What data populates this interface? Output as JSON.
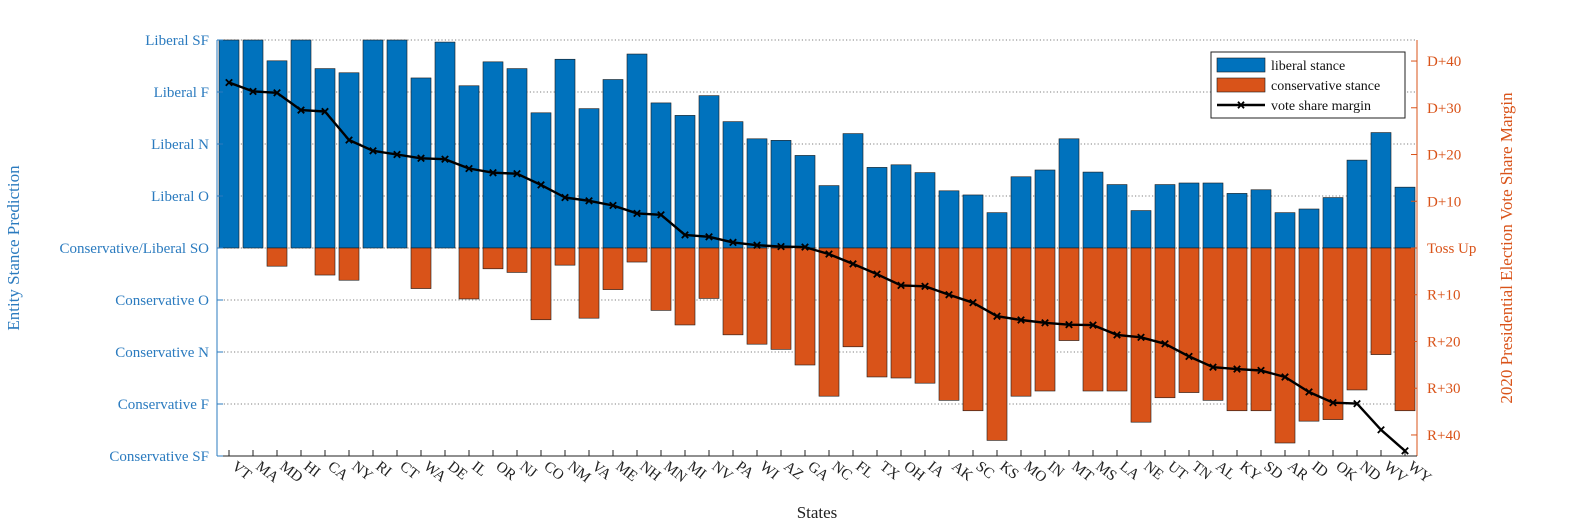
{
  "chart_data": {
    "type": "bar",
    "xlabel": "States",
    "ylabel_left": "Entity Stance Prediction",
    "ylabel_right": "2020 Presidential Election Vote Share Margin",
    "categories": [
      "VT",
      "MA",
      "MD",
      "HI",
      "CA",
      "NY",
      "RI",
      "CT",
      "WA",
      "DE",
      "IL",
      "OR",
      "NJ",
      "CO",
      "NM",
      "VA",
      "ME",
      "NH",
      "MN",
      "MI",
      "NV",
      "PA",
      "WI",
      "AZ",
      "GA",
      "NC",
      "FL",
      "TX",
      "OH",
      "IA",
      "AK",
      "SC",
      "KS",
      "MO",
      "IN",
      "MT",
      "MS",
      "LA",
      "NE",
      "UT",
      "TN",
      "AL",
      "KY",
      "SD",
      "AR",
      "ID",
      "OK",
      "ND",
      "WV",
      "WY"
    ],
    "left_axis": {
      "ticks": [
        {
          "value": 4,
          "label": "Liberal SF"
        },
        {
          "value": 3,
          "label": "Liberal F"
        },
        {
          "value": 2,
          "label": "Liberal N"
        },
        {
          "value": 1,
          "label": "Liberal O"
        },
        {
          "value": 0,
          "label": "Conservative/Liberal SO"
        },
        {
          "value": -1,
          "label": "Conservative O"
        },
        {
          "value": -2,
          "label": "Conservative N"
        },
        {
          "value": -3,
          "label": "Conservative F"
        },
        {
          "value": -4,
          "label": "Conservative SF"
        }
      ],
      "ylim": [
        -4,
        4
      ]
    },
    "right_axis": {
      "ticks": [
        {
          "value": 40,
          "label": "D+40"
        },
        {
          "value": 30,
          "label": "D+30"
        },
        {
          "value": 20,
          "label": "D+20"
        },
        {
          "value": 10,
          "label": "D+10"
        },
        {
          "value": 0,
          "label": "Toss Up"
        },
        {
          "value": -10,
          "label": "R+10"
        },
        {
          "value": -20,
          "label": "R+20"
        },
        {
          "value": -30,
          "label": "R+30"
        },
        {
          "value": -40,
          "label": "R+40"
        }
      ],
      "ylim": [
        -44.5,
        44.5
      ]
    },
    "series": [
      {
        "name": "liberal stance",
        "color": "#0072BD",
        "axis": "left",
        "values": [
          4.0,
          4.0,
          3.6,
          4.0,
          3.45,
          3.37,
          4.0,
          4.0,
          3.27,
          3.96,
          3.12,
          3.58,
          3.45,
          2.6,
          3.63,
          2.68,
          3.24,
          3.73,
          2.79,
          2.55,
          2.93,
          2.43,
          2.1,
          2.07,
          1.78,
          1.2,
          2.2,
          1.55,
          1.6,
          1.45,
          1.1,
          1.02,
          0.68,
          1.37,
          1.5,
          2.1,
          1.46,
          1.22,
          0.72,
          1.22,
          1.25,
          1.25,
          1.05,
          1.12,
          0.68,
          0.75,
          0.97,
          1.69,
          2.22,
          1.17
        ]
      },
      {
        "name": "conservative stance",
        "color": "#D95319",
        "axis": "left",
        "values": [
          0,
          0,
          -0.35,
          0,
          -0.52,
          -0.62,
          0,
          0,
          -0.78,
          0,
          -0.98,
          -0.4,
          -0.47,
          -1.38,
          -0.33,
          -1.35,
          -0.8,
          -0.27,
          -1.2,
          -1.48,
          -0.97,
          -1.67,
          -1.85,
          -1.95,
          -2.25,
          -2.85,
          -1.9,
          -2.48,
          -2.5,
          -2.6,
          -2.93,
          -3.13,
          -3.7,
          -2.85,
          -2.75,
          -1.78,
          -2.75,
          -2.75,
          -3.35,
          -2.88,
          -2.78,
          -2.93,
          -3.13,
          -3.13,
          -3.75,
          -3.33,
          -3.3,
          -2.73,
          -2.05,
          -3.13
        ]
      },
      {
        "name": "vote share margin",
        "color": "#000000",
        "axis": "right",
        "values": [
          35.4,
          33.5,
          33.2,
          29.5,
          29.2,
          23.1,
          20.8,
          20.0,
          19.2,
          19.0,
          17.0,
          16.1,
          15.9,
          13.5,
          10.8,
          10.1,
          9.1,
          7.4,
          7.1,
          2.8,
          2.4,
          1.2,
          0.6,
          0.3,
          0.2,
          -1.3,
          -3.4,
          -5.6,
          -8.0,
          -8.2,
          -10.0,
          -11.7,
          -14.6,
          -15.4,
          -16.0,
          -16.4,
          -16.5,
          -18.6,
          -19.1,
          -20.5,
          -23.2,
          -25.5,
          -25.9,
          -26.2,
          -27.6,
          -30.8,
          -33.1,
          -33.3,
          -38.9,
          -43.4
        ]
      }
    ],
    "legend": {
      "position": "top-right",
      "entries": [
        "liberal stance",
        "conservative stance",
        "vote share margin"
      ]
    },
    "grid": "horizontal dotted"
  }
}
